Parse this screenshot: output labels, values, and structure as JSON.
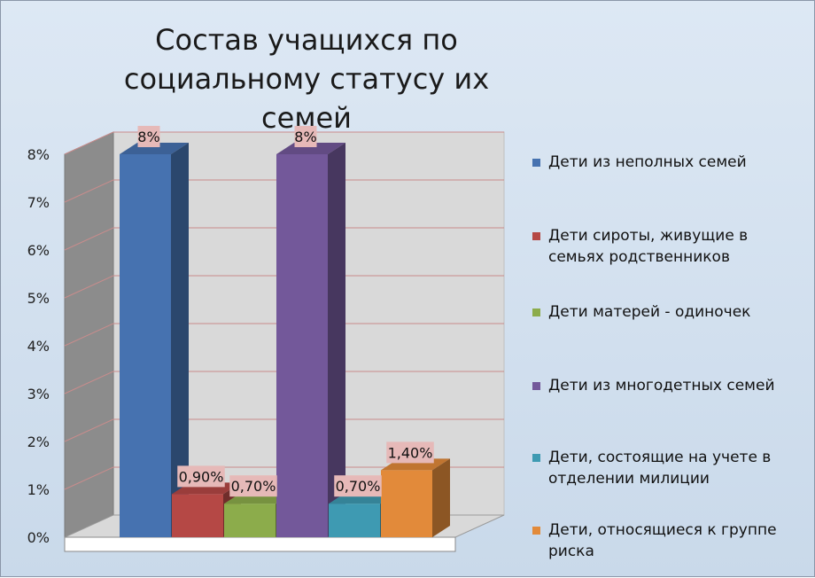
{
  "chart_data": {
    "type": "bar",
    "title": "Состав учащихся по социальному статусу их семей",
    "ylim": [
      0,
      8
    ],
    "y_ticks": [
      "0%",
      "1%",
      "2%",
      "3%",
      "4%",
      "5%",
      "6%",
      "7%",
      "8%"
    ],
    "grid": true,
    "legend_position": "right",
    "series": [
      {
        "name": "Дети из неполных семей",
        "value": 8,
        "label": "8%",
        "color": "#4672b0"
      },
      {
        "name": "Дети сироты, живущие в семьях родственников",
        "value": 0.9,
        "label": "0,90%",
        "color": "#b54845"
      },
      {
        "name": "Дети матерей - одиночек",
        "value": 0.7,
        "label": "0,70%",
        "color": "#8cac4b"
      },
      {
        "name": "Дети из многодетных семей",
        "value": 8,
        "label": "8%",
        "color": "#73589a"
      },
      {
        "name": "Дети, состоящие на учете в отделении милиции",
        "value": 0.7,
        "label": "0,70%",
        "color": "#3e9ab2"
      },
      {
        "name": "Дети, относящиеся к группе риска",
        "value": 1.4,
        "label": "1,40%",
        "color": "#e28a3a"
      }
    ]
  }
}
